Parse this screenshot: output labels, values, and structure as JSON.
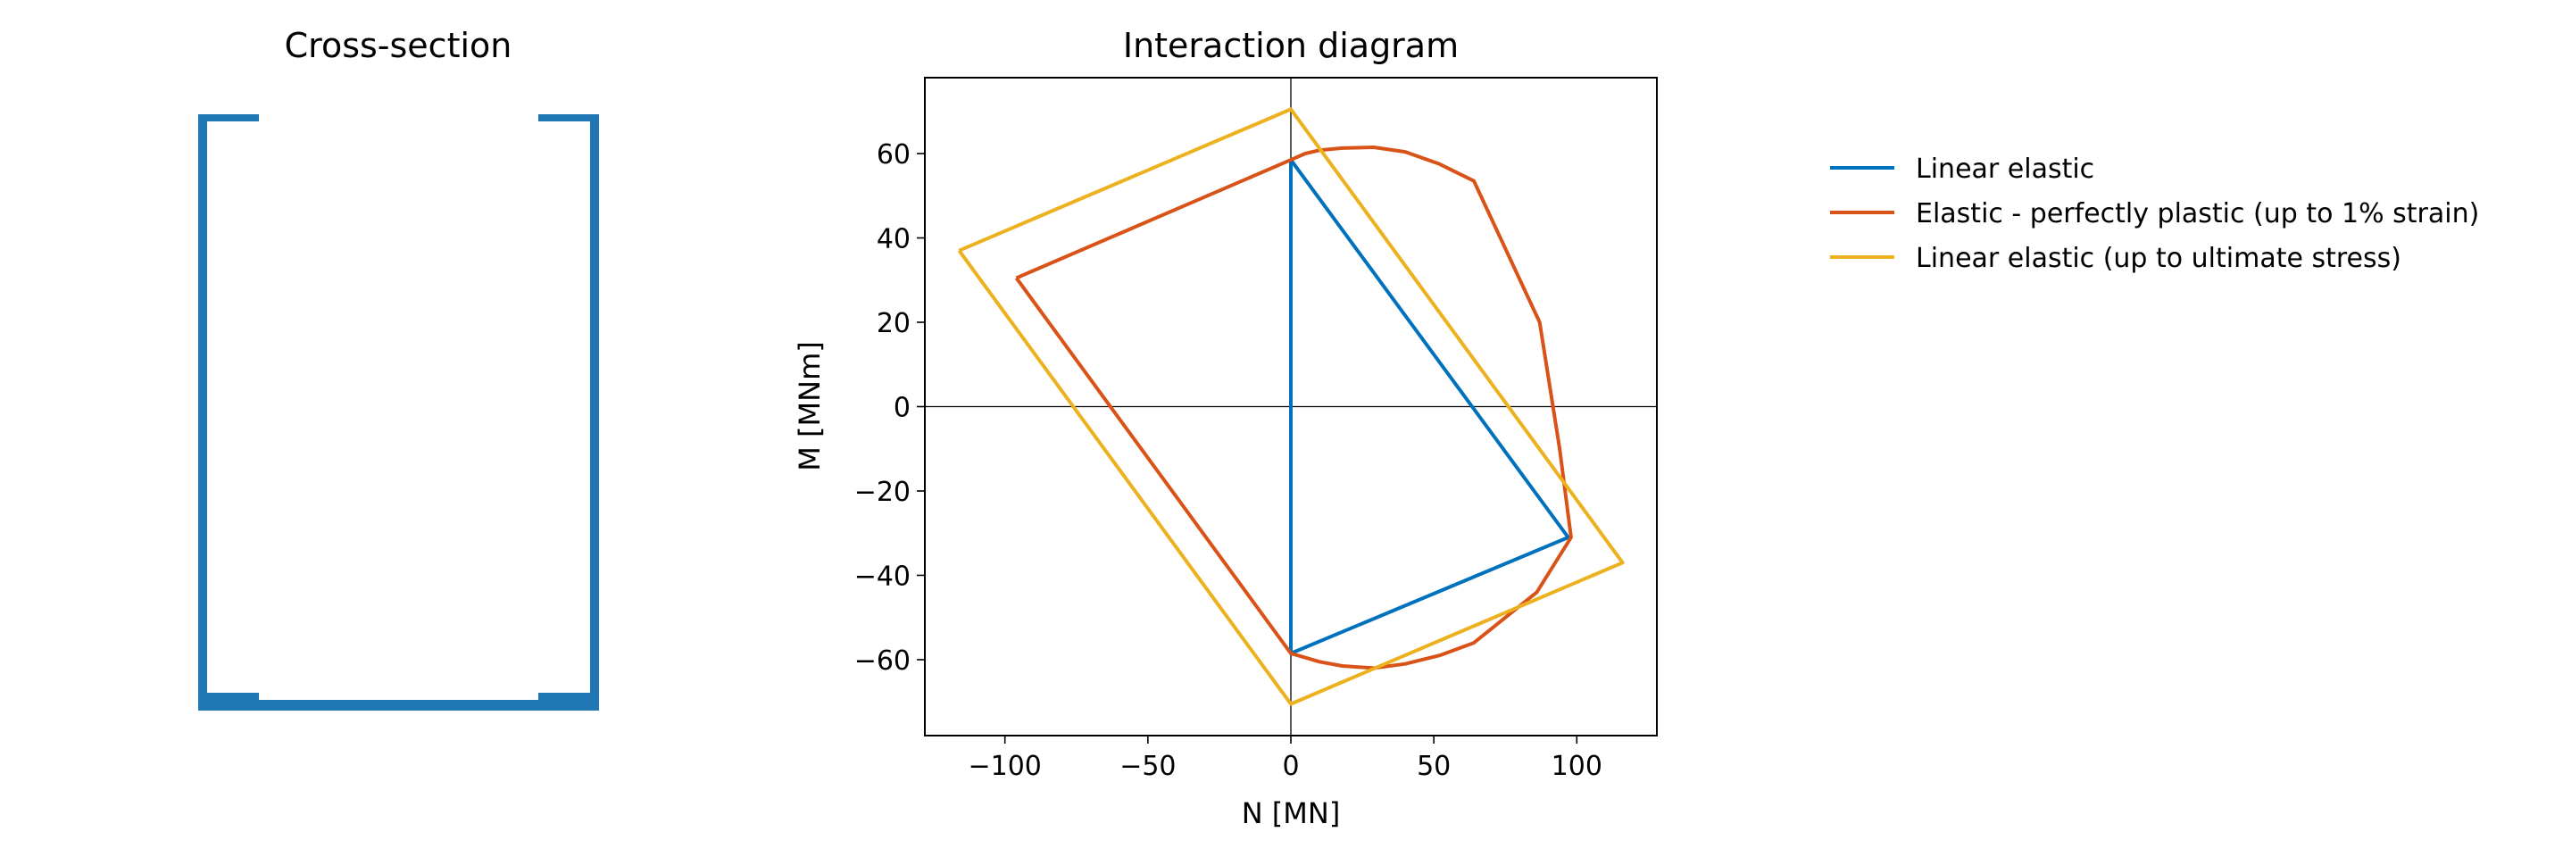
{
  "chart_data": [
    {
      "type": "diagram",
      "title": "Cross-section",
      "section_outline_units": "relative (width 1.0 = outer width, height 1.5)",
      "shape": "open thin-walled U-section with inward top lips and thickened bottom corners",
      "color": "#1f77b4"
    },
    {
      "type": "line",
      "title": "Interaction diagram",
      "xlabel": "N [MN]",
      "ylabel": "M [MNm]",
      "xlim": [
        -128,
        128
      ],
      "ylim": [
        -78,
        78
      ],
      "xticks": [
        -100,
        -50,
        0,
        50,
        100
      ],
      "xtick_labels": [
        "−100",
        "−50",
        "0",
        "50",
        "100"
      ],
      "yticks": [
        -60,
        -40,
        -20,
        0,
        20,
        40,
        60
      ],
      "ytick_labels": [
        "−60",
        "−40",
        "−20",
        "0",
        "20",
        "40",
        "60"
      ],
      "grid": false,
      "axis_lines_through_origin": true,
      "legend_position": "outside right, top",
      "series": [
        {
          "name": "Linear elastic",
          "color": "#0072BD",
          "points": [
            [
              0,
              58.5
            ],
            [
              97,
              -31
            ],
            [
              0,
              -58.5
            ],
            [
              0,
              58.5
            ]
          ]
        },
        {
          "name": "Elastic - perfectly plastic (up to 1% strain)",
          "color": "#D95319",
          "points": [
            [
              -96,
              30.5
            ],
            [
              0,
              58.5
            ],
            [
              5,
              60
            ],
            [
              10,
              60.8
            ],
            [
              18,
              61.3
            ],
            [
              29,
              61.5
            ],
            [
              40,
              60.4
            ],
            [
              52,
              57.5
            ],
            [
              64,
              53.5
            ],
            [
              87,
              20
            ],
            [
              94,
              -10
            ],
            [
              98,
              -31
            ],
            [
              86,
              -44
            ],
            [
              64,
              -56
            ],
            [
              52,
              -59
            ],
            [
              40,
              -61
            ],
            [
              29,
              -62
            ],
            [
              18,
              -61.5
            ],
            [
              10,
              -60.5
            ],
            [
              5,
              -59.5
            ],
            [
              0,
              -58.5
            ],
            [
              -96,
              30.5
            ]
          ]
        },
        {
          "name": "Linear elastic (up to ultimate stress)",
          "color": "#EDB120",
          "points": [
            [
              -116,
              37
            ],
            [
              0,
              70.5
            ],
            [
              116,
              -37
            ],
            [
              0,
              -70.5
            ],
            [
              -116,
              37
            ]
          ]
        }
      ]
    }
  ]
}
